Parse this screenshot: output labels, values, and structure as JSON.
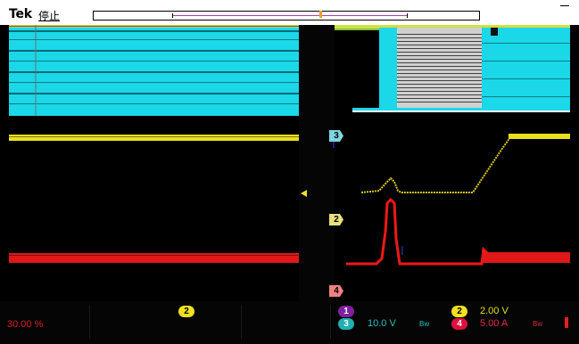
{
  "header": {
    "brand": "Tek",
    "status": "停止"
  },
  "channels": {
    "ch1": {
      "label": "1",
      "color": "#8020a0"
    },
    "ch2": {
      "label": "2",
      "scale": "2.00 V",
      "color": "#f0e020"
    },
    "ch3": {
      "label": "3",
      "scale": "10.0 V",
      "color": "#20b0b0",
      "bw": "Bw"
    },
    "ch4": {
      "label": "4",
      "scale": "5.00 A",
      "color": "#e01040",
      "bw": "Bw"
    }
  },
  "markers": {
    "ch3": "3",
    "ch2": "2",
    "ch4": "4"
  },
  "bottom": {
    "percent": "30.00 %"
  },
  "icons": {
    "trigger": "trigger-arrow-icon",
    "cursor": "cursor-marker-icon"
  }
}
